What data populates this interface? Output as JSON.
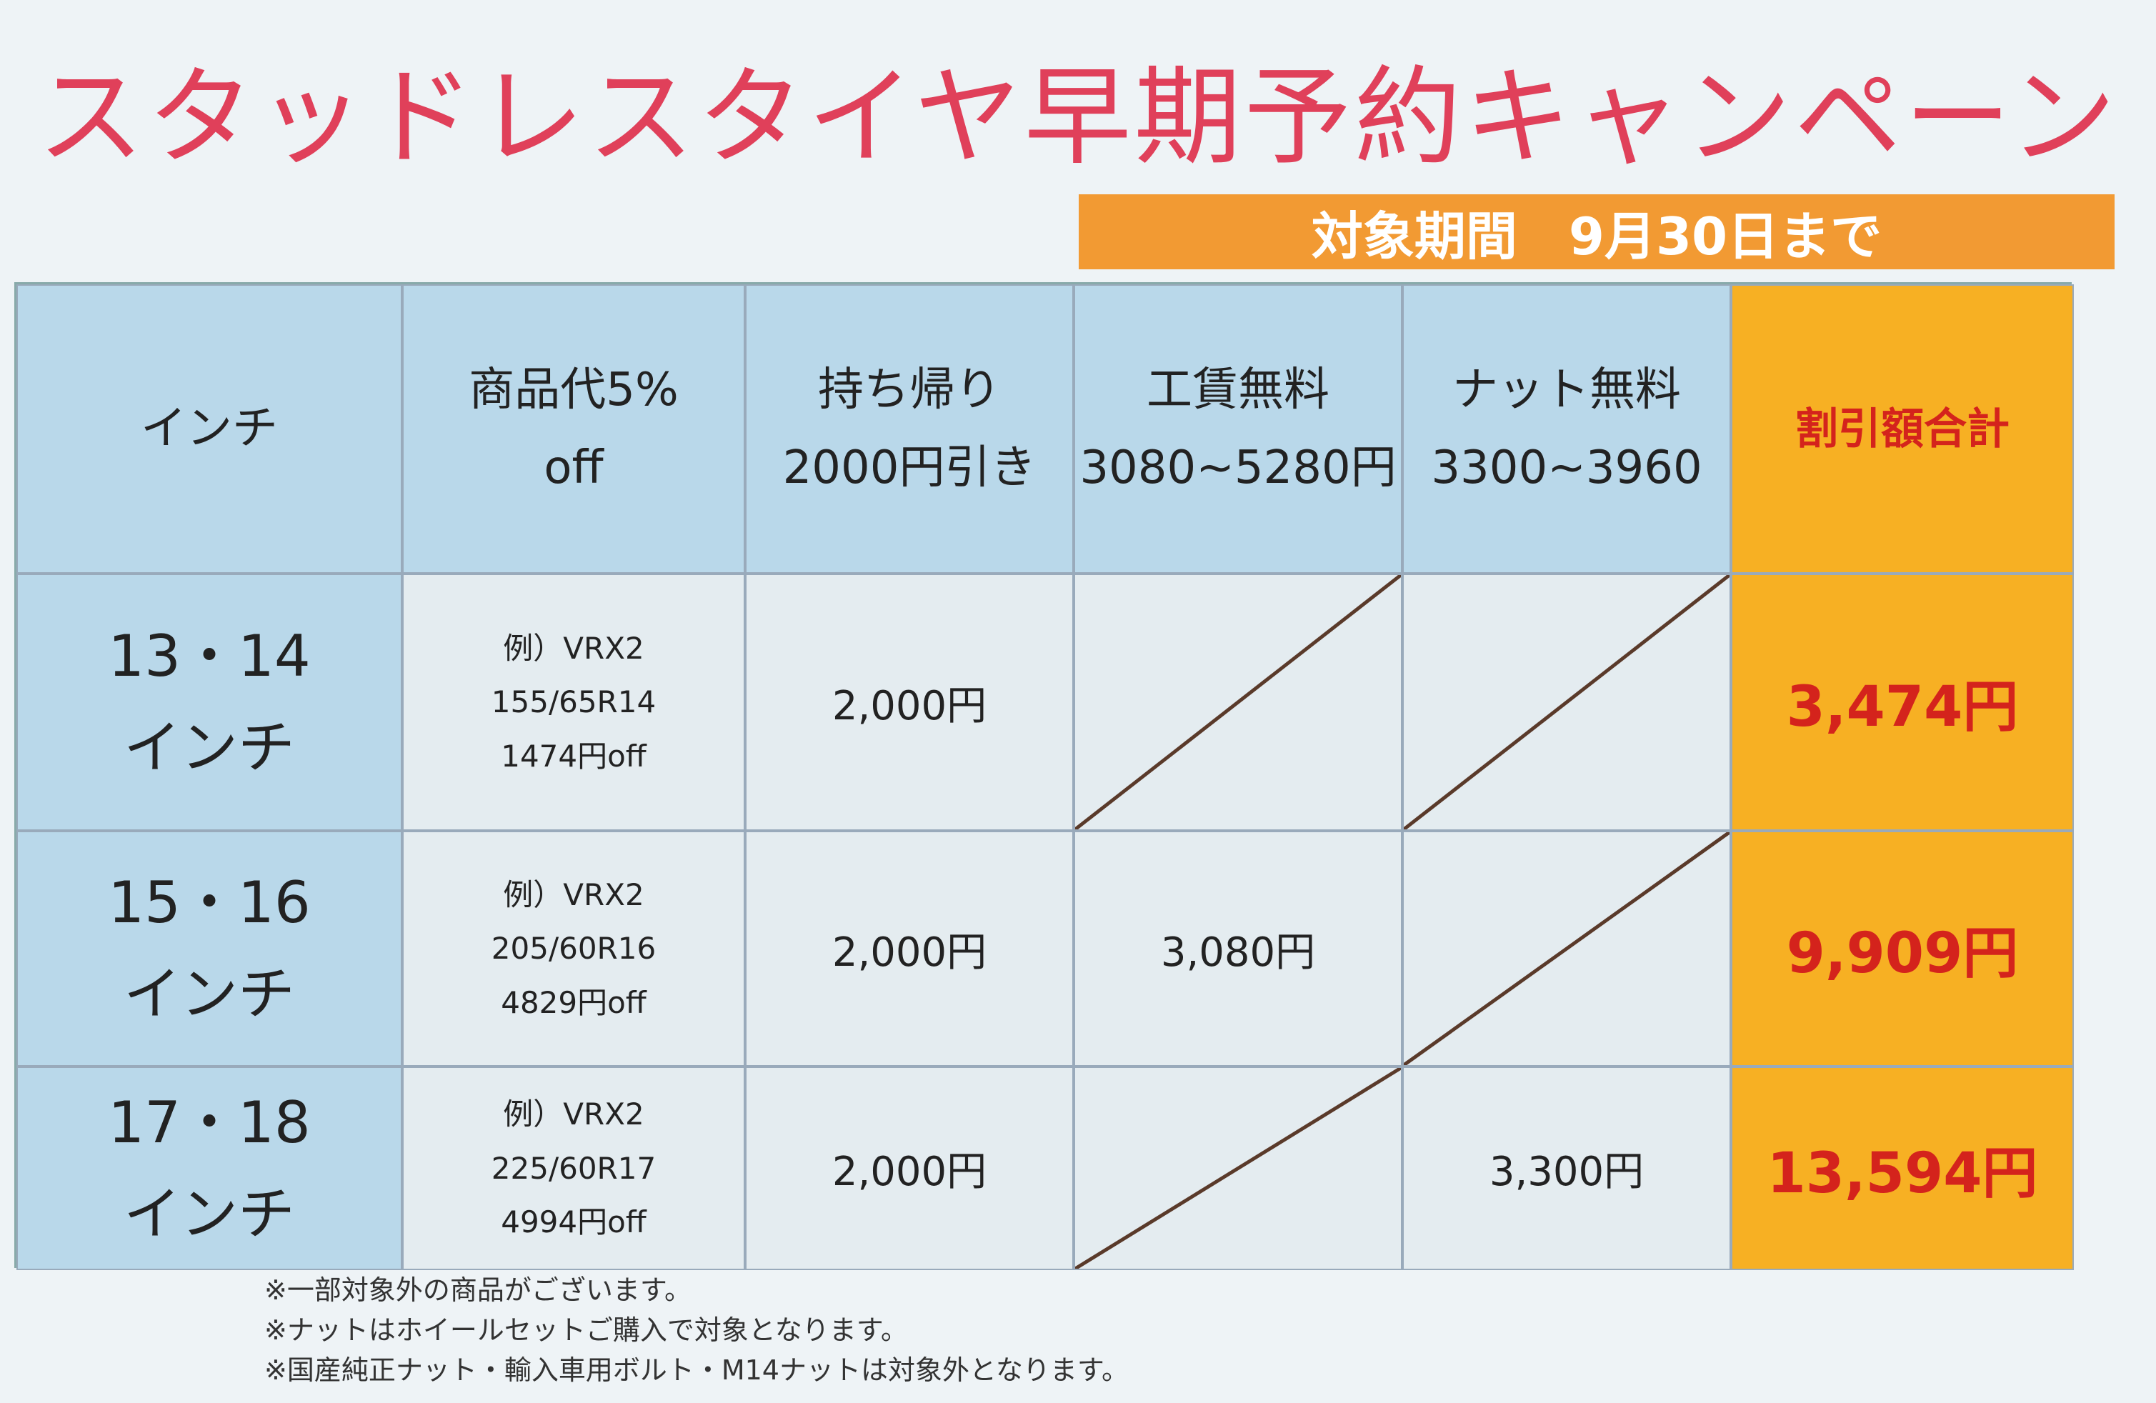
{
  "header": {
    "title": "スタッドレスタイヤ早期予約キャンペーン",
    "period": "対象期間　9月30日まで"
  },
  "table": {
    "columns": [
      "インチ",
      "商品代5%\noff",
      "持ち帰り\n2000円引き",
      "工賃無料\n3080~5280円",
      "ナット無料\n3300~3960",
      "割引額合計"
    ],
    "rows": [
      {
        "inch": "13・14\nインチ",
        "example": "例）VRX2\n155/65R14\n1474円off",
        "takeout": "2,000円",
        "total": "3,474円"
      },
      {
        "inch": "15・16\nインチ",
        "example": "例）VRX2\n205/60R16\n4829円off",
        "takeout": "2,000円",
        "labor": "3,080円",
        "total": "9,909円"
      },
      {
        "inch": "17・18\nインチ",
        "example": "例）VRX2\n225/60R17\n4994円off",
        "takeout": "2,000円",
        "nut": "3,300円",
        "total": "13,594円"
      }
    ]
  },
  "notes": [
    "※一部対象外の商品がございます。",
    "※ナットはホイールセットご購入で対象となります。",
    "※国産純正ナット・輸入車用ボルト・M14ナットは対象外となります。"
  ]
}
